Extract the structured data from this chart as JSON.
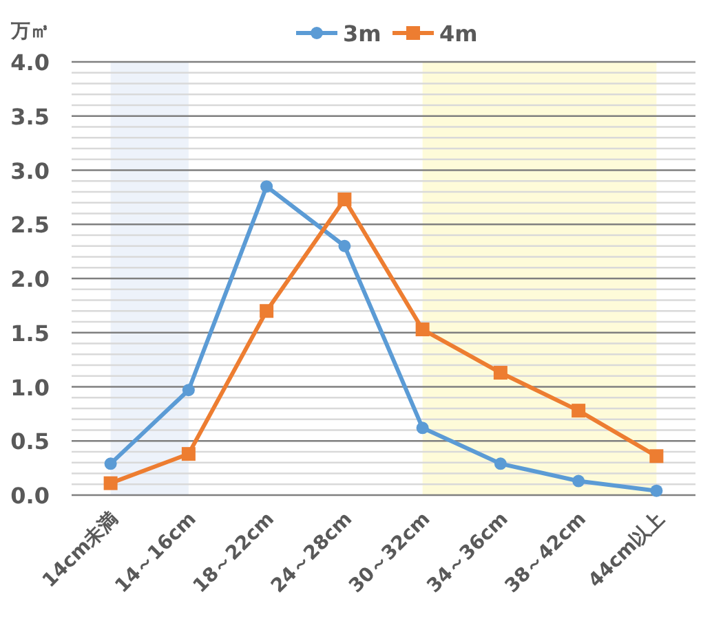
{
  "chart_data": {
    "type": "line",
    "ylabel": "万㎥",
    "categories": [
      "14cm未満",
      "14～16cm",
      "18～22cm",
      "24～28cm",
      "30～32cm",
      "34～36cm",
      "38～42cm",
      "44cm以上"
    ],
    "series": [
      {
        "name": "3m",
        "color": "#5b9bd5",
        "marker": "circle",
        "values": [
          0.29,
          0.97,
          2.85,
          2.3,
          0.62,
          0.29,
          0.13,
          0.04
        ]
      },
      {
        "name": "4m",
        "color": "#ed7d31",
        "marker": "square",
        "values": [
          0.11,
          0.38,
          1.7,
          2.73,
          1.53,
          1.13,
          0.78,
          0.36
        ]
      }
    ],
    "ylim": [
      0,
      4
    ],
    "yticks": [
      {
        "value": 0,
        "label": "0.0"
      },
      {
        "value": 0.5,
        "label": "0.5"
      },
      {
        "value": 1,
        "label": "1.0"
      },
      {
        "value": 1.5,
        "label": "1.5"
      },
      {
        "value": 2,
        "label": "2.0"
      },
      {
        "value": 2.5,
        "label": "2.5"
      },
      {
        "value": 3,
        "label": "3.0"
      },
      {
        "value": 3.5,
        "label": "3.5"
      },
      {
        "value": 4,
        "label": "4.0"
      }
    ],
    "bands": [
      {
        "axis": "x",
        "from": "14cm未満",
        "to": "14～16cm",
        "color": "#edf2fa"
      },
      {
        "axis": "x",
        "from": "30～32cm",
        "to": "44cm以上",
        "color": "#fefbd9"
      }
    ],
    "grid": "y",
    "legend": "top"
  }
}
